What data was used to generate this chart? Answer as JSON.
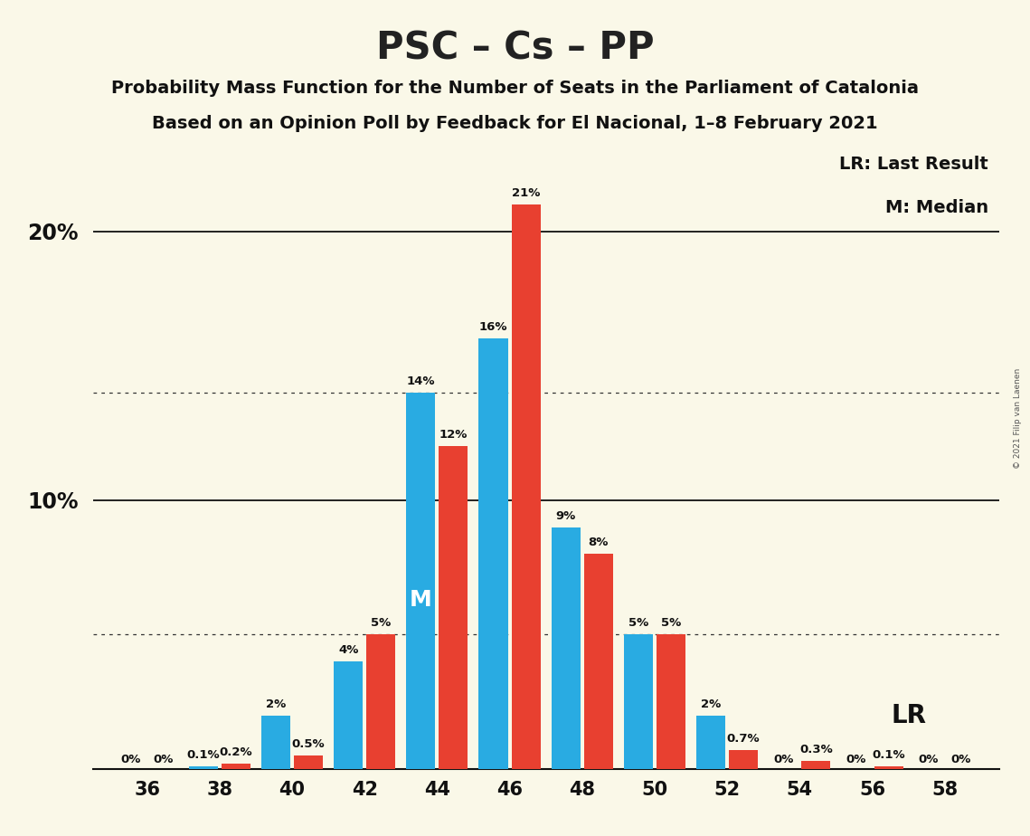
{
  "title": "PSC – Cs – PP",
  "subtitle1": "Probability Mass Function for the Number of Seats in the Parliament of Catalonia",
  "subtitle2": "Based on an Opinion Poll by Feedback for El Nacional, 1–8 February 2021",
  "copyright": "© 2021 Filip van Laenen",
  "seats": [
    36,
    38,
    40,
    42,
    44,
    46,
    48,
    50,
    52,
    54,
    56,
    58
  ],
  "blue_probs": [
    0.0,
    0.1,
    2.0,
    4.0,
    14.0,
    16.0,
    9.0,
    5.0,
    2.0,
    0.0,
    0.0,
    0.0
  ],
  "blue_labels": [
    "0%",
    "0.1%",
    "2%",
    "4%",
    "14%",
    "16%",
    "9%",
    "5%",
    "2%",
    "0%",
    "0%",
    "0%"
  ],
  "red_probs": [
    0.0,
    0.2,
    0.5,
    5.0,
    12.0,
    21.0,
    8.0,
    5.0,
    0.7,
    0.3,
    0.1,
    0.0
  ],
  "red_labels": [
    "0%",
    "0.2%",
    "0.5%",
    "5%",
    "12%",
    "21%",
    "8%",
    "5%",
    "0.7%",
    "0.3%",
    "0.1%",
    "0%"
  ],
  "extra_red_labels_left": [
    "0%",
    "",
    "",
    "",
    "",
    "",
    "",
    "",
    "",
    "",
    "",
    ""
  ],
  "background_color": "#FAF8E8",
  "blue_color": "#29ABE2",
  "red_color": "#E84030",
  "median_seat_idx": 4,
  "lr_seat_idx": 7,
  "legend_lr": "LR: Last Result",
  "legend_m": "M: Median",
  "ymax": 23.0,
  "dotted_line_1": 5.0,
  "dotted_line_2": 14.0,
  "solid_line_1": 10.0,
  "solid_line_2": 20.0,
  "bar_width": 0.8,
  "title_fontsize": 30,
  "subtitle_fontsize": 14,
  "label_fontsize": 9.5,
  "tick_fontsize": 15,
  "ytick_fontsize": 17,
  "legend_fontsize": 14
}
